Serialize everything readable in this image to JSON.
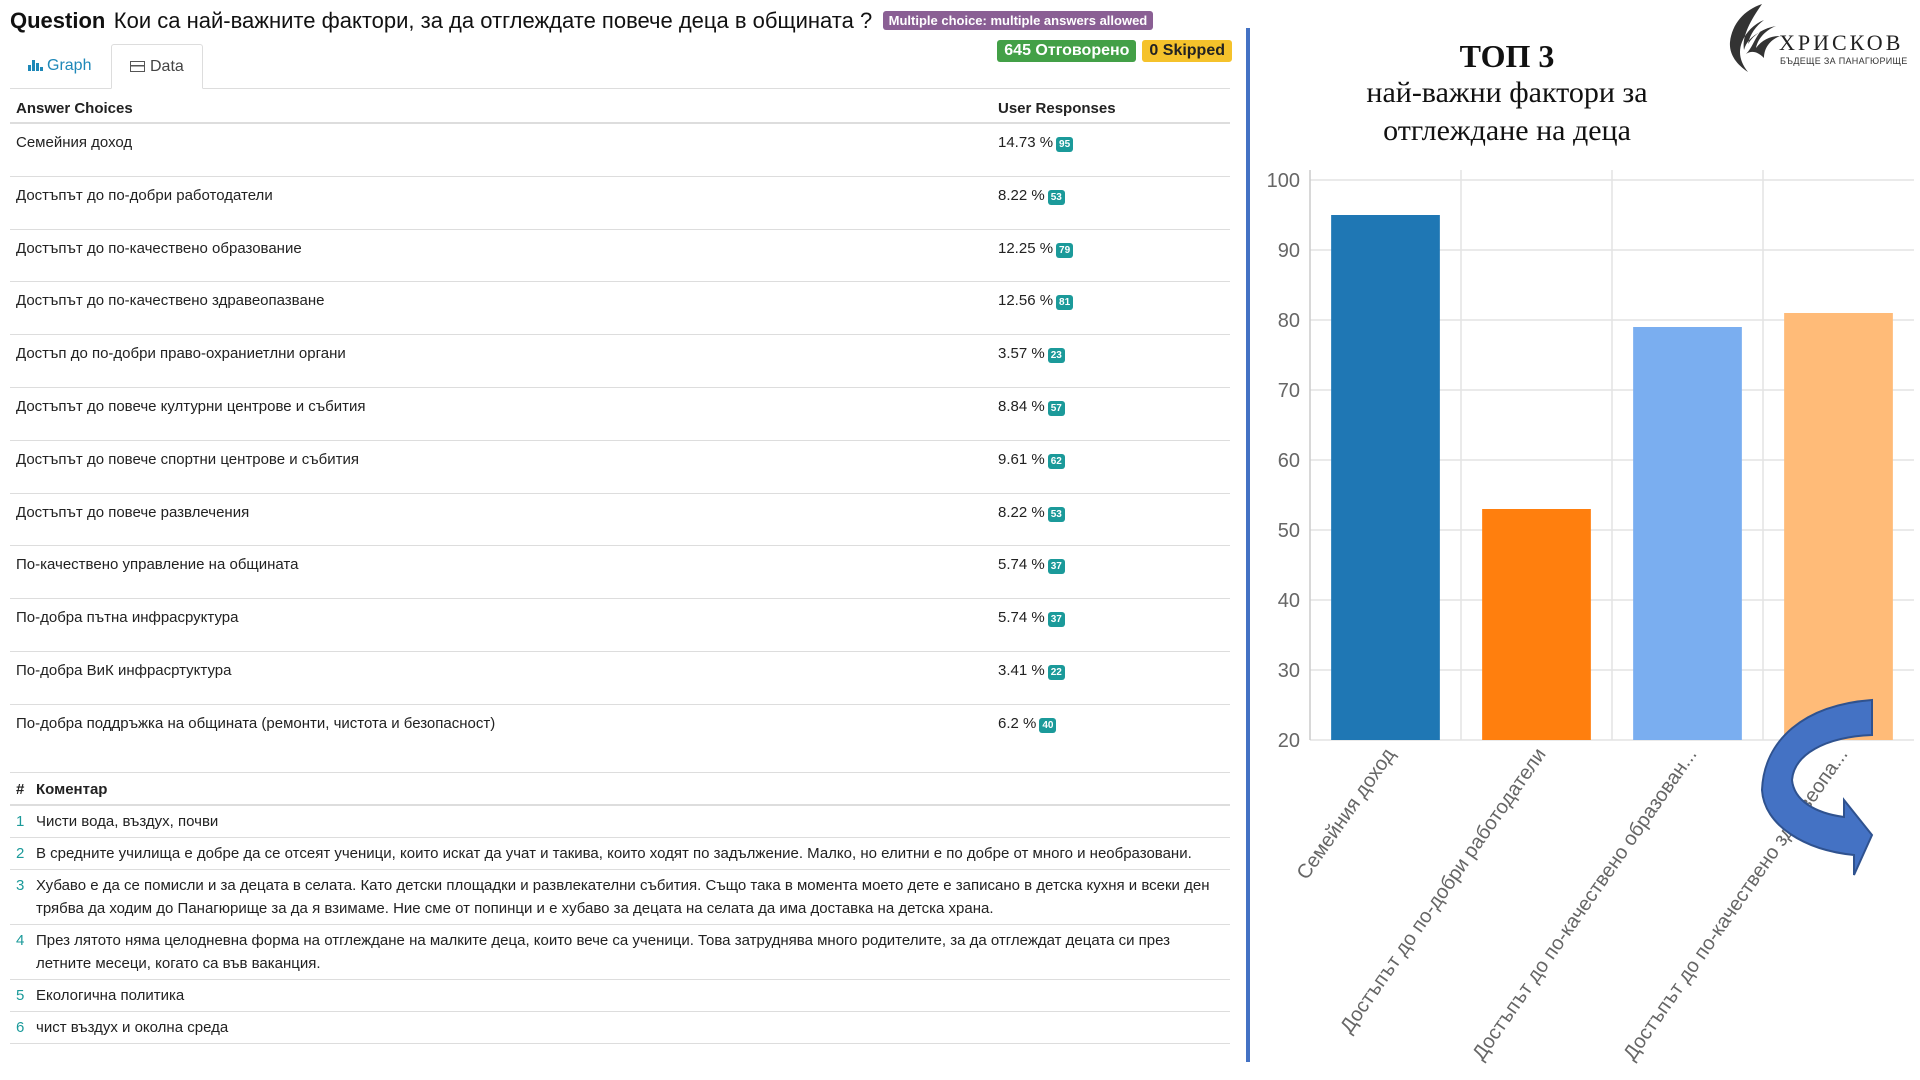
{
  "question": {
    "label": "Question",
    "text": "Кои са най-важните фактори, за да отглеждате повече деца в общината ?",
    "type_badge": "Multiple choice: multiple answers allowed",
    "answered": "645 Отговорено",
    "skipped": "0 Skipped"
  },
  "tabs": {
    "graph": "Graph",
    "data": "Data"
  },
  "answers_table": {
    "col_choices": "Answer Choices",
    "col_responses": "User Responses",
    "rows": [
      {
        "choice": "Семейния доход",
        "percent": "14.73 %",
        "count": "95"
      },
      {
        "choice": "Достъпът до по-добри работодатели",
        "percent": "8.22 %",
        "count": "53"
      },
      {
        "choice": "Достъпът до по-качествено образование",
        "percent": "12.25 %",
        "count": "79"
      },
      {
        "choice": "Достъпът до по-качествено здравеопазване",
        "percent": "12.56 %",
        "count": "81"
      },
      {
        "choice": "Достъп до по-добри право-охраниетлни органи",
        "percent": "3.57 %",
        "count": "23"
      },
      {
        "choice": "Достъпът до повече културни центрове и събития",
        "percent": "8.84 %",
        "count": "57"
      },
      {
        "choice": "Достъпът до повече спортни центрове и събития",
        "percent": "9.61 %",
        "count": "62"
      },
      {
        "choice": "Достъпът до повече развлечения",
        "percent": "8.22 %",
        "count": "53"
      },
      {
        "choice": "По-качествено управление на общината",
        "percent": "5.74 %",
        "count": "37"
      },
      {
        "choice": "По-добра пътна инфрасруктура",
        "percent": "5.74 %",
        "count": "37"
      },
      {
        "choice": "По-добра ВиК инфрасртуктура",
        "percent": "3.41 %",
        "count": "22"
      },
      {
        "choice": "По-добра поддръжка на общината (ремонти, чистота и безопасност)",
        "percent": "6.2 %",
        "count": "40"
      }
    ]
  },
  "comments": {
    "col_num": "#",
    "col_text": "Коментар",
    "rows": [
      {
        "num": "1",
        "text": "Чисти вода, въздух, почви"
      },
      {
        "num": "2",
        "text": "В средните училища е добре да се отсеят ученици, които искат да учат и такива, които ходят по задължение. Малко, но елитни е по добре от много и необразовани."
      },
      {
        "num": "3",
        "text": "Хубаво е да се помисли и за децата в селата. Като детски площадки и развлекателни събития. Също така в момента моето дете е записано в детска кухня и всеки ден трябва да ходим до Панагюрище за да я взимаме. Ние сме от попинци и е хубаво за децата на селата да има доставка на детска храна."
      },
      {
        "num": "4",
        "text": "През лятото няма целодневна форма на отглеждане на малките деца, които вече са ученици. Това затруднява много родителите, за да отглеждат децата си през летните месеци, когато са във ваканция."
      },
      {
        "num": "5",
        "text": "Екологична политика"
      },
      {
        "num": "6",
        "text": "чист въздух и околна среда"
      }
    ]
  },
  "slide": {
    "title_line1": "ТОП 3",
    "title_line2": "най-важни фактори за",
    "title_line3": "отглеждане на деца",
    "logo_name": "ХРИСКОВ",
    "logo_tagline": "БЪДЕЩЕ ЗА ПАНАГЮРИЩЕ"
  },
  "chart_data": {
    "type": "bar",
    "categories": [
      "Семейния доход",
      "Достъпът до по-добри работодатели",
      "Достъпът до по-качествено образован...",
      "Достъпът до по-качествено здравеопа..."
    ],
    "values": [
      95,
      53,
      79,
      81
    ],
    "colors": [
      "#1f77b4",
      "#ff7f0e",
      "#7aaef0",
      "#ffbb78"
    ],
    "ylim": [
      20,
      100
    ],
    "yticks": [
      20,
      30,
      40,
      50,
      60,
      70,
      80,
      90,
      100
    ],
    "grid": true,
    "title": "",
    "xlabel": "",
    "ylabel": ""
  },
  "colors": {
    "divider": "#4472c4",
    "arrow": "#4472c4",
    "teal_badge": "#1b9a9a",
    "answered_badge": "#43a047",
    "skipped_badge": "#f5c22b",
    "type_badge": "#8a5f94"
  }
}
